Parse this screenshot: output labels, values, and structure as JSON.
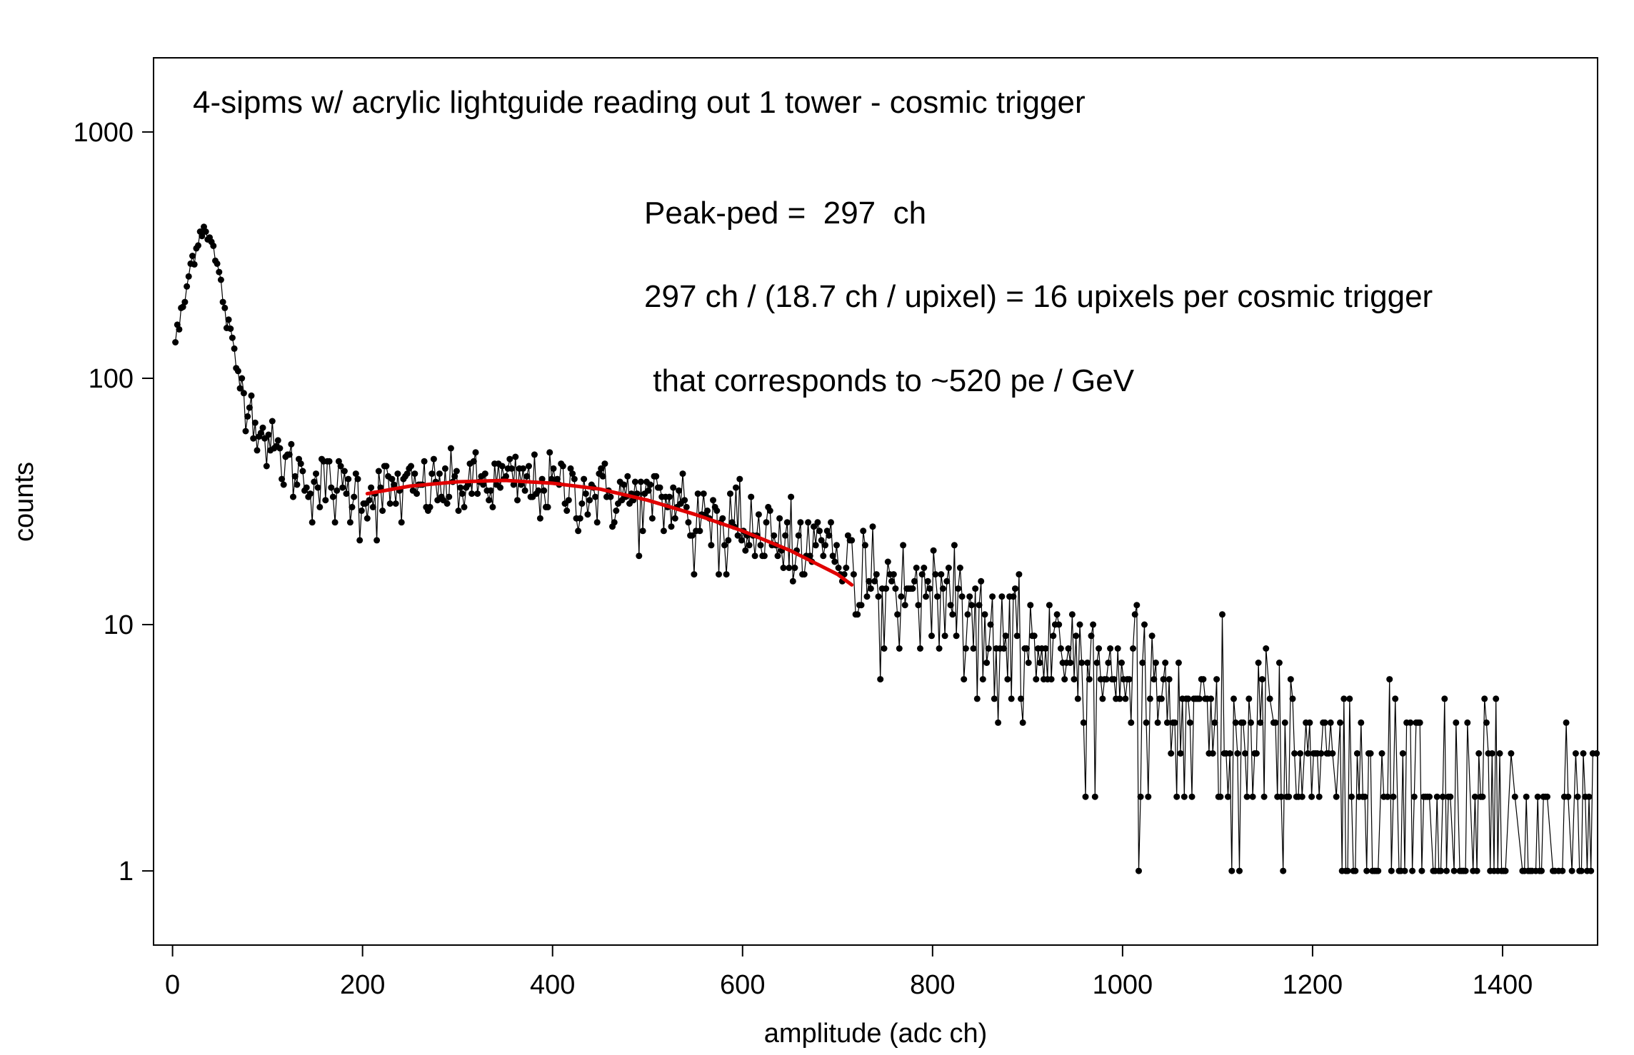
{
  "chart_data": {
    "type": "scatter",
    "title": "4-sipms w/ acrylic lightguide reading out 1 tower  -  cosmic trigger",
    "xlabel": "amplitude (adc ch)",
    "ylabel": "counts",
    "xlim": [
      -20,
      1500
    ],
    "ylim": [
      0.5,
      2000
    ],
    "yscale": "log",
    "grid": false,
    "x_ticks": [
      0,
      200,
      400,
      600,
      800,
      1000,
      1200,
      1400
    ],
    "x_tick_labels": [
      "0",
      "200",
      "400",
      "600",
      "800",
      "1000",
      "1200",
      "1400"
    ],
    "y_ticks": [
      1,
      10,
      100,
      1000
    ],
    "y_tick_labels": [
      "1",
      "10",
      "100",
      "1000"
    ],
    "annotations": [
      "Peak-ped =  297  ch",
      "297 ch / (18.7 ch / upixel) = 16 upixels per cosmic trigger",
      " that corresponds to ~520 pe / GeV"
    ],
    "series": [
      {
        "style": "points-with-thin-connecting-line",
        "color": "#000000",
        "envelope": {
          "x": [
            0,
            10,
            20,
            30,
            35,
            40,
            50,
            60,
            70,
            80,
            90,
            100,
            120,
            150,
            200,
            300,
            350,
            400,
            500,
            600,
            700,
            750,
            800,
            850,
            900,
            950,
            1000,
            1050,
            1100,
            1150,
            1200,
            1300,
            1400,
            1500
          ],
          "y": [
            130,
            180,
            300,
            400,
            410,
            370,
            250,
            150,
            100,
            80,
            65,
            55,
            45,
            38,
            34,
            37,
            38,
            37,
            32,
            26,
            18,
            15,
            13,
            11,
            9,
            8,
            6.5,
            5,
            4,
            3.2,
            2.6,
            2.0,
            1.6,
            1.3
          ]
        }
      },
      {
        "name": "fit",
        "style": "line",
        "color": "#e00000",
        "x": [
          205,
          250,
          300,
          350,
          400,
          450,
          500,
          550,
          600,
          650,
          700,
          715
        ],
        "y": [
          34,
          36.5,
          38,
          38.5,
          37.5,
          35.5,
          32,
          28,
          24,
          20,
          16,
          14.5
        ]
      }
    ]
  }
}
